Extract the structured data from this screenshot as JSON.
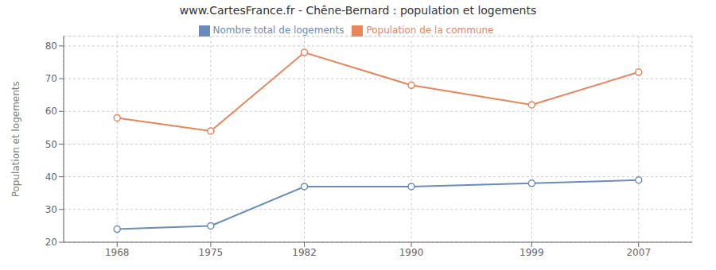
{
  "chart_data": {
    "type": "line",
    "title": "www.CartesFrance.fr - Chêne-Bernard : population et logements",
    "ylabel": "Population et logements",
    "x": [
      1968,
      1975,
      1982,
      1990,
      1999,
      2007
    ],
    "xlim": [
      1964,
      2011
    ],
    "xticks": [
      1968,
      1975,
      1982,
      1990,
      1999,
      2007
    ],
    "ylim": [
      20,
      83
    ],
    "yticks": [
      20,
      30,
      40,
      50,
      60,
      70,
      80
    ],
    "grid": true,
    "legend": "top",
    "series": [
      {
        "name": "Nombre total de logements",
        "color": "#6b8cba",
        "marker": "circle",
        "values": [
          24,
          25,
          37,
          37,
          38,
          39
        ]
      },
      {
        "name": "Population de la commune",
        "color": "#e8855a",
        "marker": "circle",
        "values": [
          58,
          54,
          78,
          68,
          62,
          72
        ]
      }
    ]
  }
}
